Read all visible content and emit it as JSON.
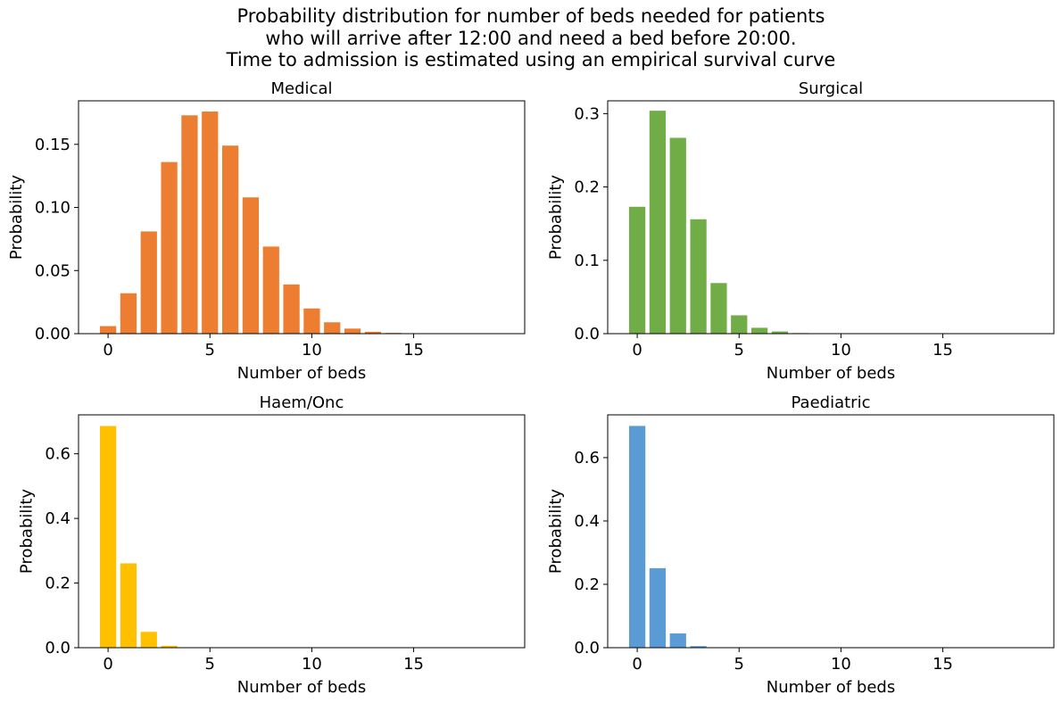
{
  "figure": {
    "title_lines": [
      "Probability distribution for number of beds needed for patients",
      "who will arrive after 12:00 and need a bed before 20:00.",
      "Time to admission is estimated using an empirical survival curve"
    ]
  },
  "chart_data": [
    {
      "type": "bar",
      "title": "Medical",
      "xlabel": "Number of beds",
      "ylabel": "Probability",
      "color": "#ED7D31",
      "x": [
        0,
        1,
        2,
        3,
        4,
        5,
        6,
        7,
        8,
        9,
        10,
        11,
        12,
        13,
        14,
        15,
        16,
        17,
        18,
        19
      ],
      "values": [
        0.006,
        0.032,
        0.081,
        0.136,
        0.173,
        0.176,
        0.149,
        0.108,
        0.069,
        0.039,
        0.02,
        0.009,
        0.004,
        0.0015,
        0.0006,
        0.0002,
        0.0001,
        0.0,
        0.0,
        0.0
      ],
      "xlim": [
        -1.45,
        20.45
      ],
      "ylim": [
        0,
        0.1845
      ],
      "xticks": [
        0,
        5,
        10,
        15
      ],
      "xtick_labels": [
        "0",
        "5",
        "10",
        "15"
      ],
      "yticks": [
        0.0,
        0.05,
        0.1,
        0.15
      ],
      "ytick_labels": [
        "0.00",
        "0.05",
        "0.10",
        "0.15"
      ]
    },
    {
      "type": "bar",
      "title": "Surgical",
      "xlabel": "Number of beds",
      "ylabel": "Probability",
      "color": "#70AD47",
      "x": [
        0,
        1,
        2,
        3,
        4,
        5,
        6,
        7,
        8,
        9,
        10,
        11,
        12,
        13,
        14,
        15,
        16,
        17,
        18,
        19
      ],
      "values": [
        0.173,
        0.304,
        0.267,
        0.156,
        0.069,
        0.025,
        0.008,
        0.003,
        0.0008,
        0.0002,
        0.0,
        0.0,
        0.0,
        0.0,
        0.0,
        0.0,
        0.0,
        0.0,
        0.0,
        0.0
      ],
      "xlim": [
        -1.45,
        20.45
      ],
      "ylim": [
        0,
        0.3175
      ],
      "xticks": [
        0,
        5,
        10,
        15
      ],
      "xtick_labels": [
        "0",
        "5",
        "10",
        "15"
      ],
      "yticks": [
        0.0,
        0.1,
        0.2,
        0.3
      ],
      "ytick_labels": [
        "0.0",
        "0.1",
        "0.2",
        "0.3"
      ]
    },
    {
      "type": "bar",
      "title": "Haem/Onc",
      "xlabel": "Number of beds",
      "ylabel": "Probability",
      "color": "#FFC000",
      "x": [
        0,
        1,
        2,
        3,
        4,
        5,
        6,
        7,
        8,
        9,
        10,
        11,
        12,
        13,
        14,
        15,
        16,
        17,
        18,
        19
      ],
      "values": [
        0.686,
        0.261,
        0.049,
        0.006,
        0.0006,
        0.0001,
        0.0,
        0.0,
        0.0,
        0.0,
        0.0,
        0.0,
        0.0,
        0.0,
        0.0,
        0.0,
        0.0,
        0.0,
        0.0,
        0.0
      ],
      "xlim": [
        -1.45,
        20.45
      ],
      "ylim": [
        0,
        0.7205
      ],
      "xticks": [
        0,
        5,
        10,
        15
      ],
      "xtick_labels": [
        "0",
        "5",
        "10",
        "15"
      ],
      "yticks": [
        0.0,
        0.2,
        0.4,
        0.6
      ],
      "ytick_labels": [
        "0.0",
        "0.2",
        "0.4",
        "0.6"
      ]
    },
    {
      "type": "bar",
      "title": "Paediatric",
      "xlabel": "Number of beds",
      "ylabel": "Probability",
      "color": "#5B9BD5",
      "x": [
        0,
        1,
        2,
        3,
        4,
        5,
        6,
        7,
        8,
        9,
        10,
        11,
        12,
        13,
        14,
        15,
        16,
        17,
        18,
        19
      ],
      "values": [
        0.7,
        0.251,
        0.045,
        0.005,
        0.0005,
        0.0,
        0.0,
        0.0,
        0.0,
        0.0,
        0.0,
        0.0,
        0.0,
        0.0,
        0.0,
        0.0,
        0.0,
        0.0,
        0.0,
        0.0
      ],
      "xlim": [
        -1.45,
        20.45
      ],
      "ylim": [
        0,
        0.735
      ],
      "xticks": [
        0,
        5,
        10,
        15
      ],
      "xtick_labels": [
        "0",
        "5",
        "10",
        "15"
      ],
      "yticks": [
        0.0,
        0.2,
        0.4,
        0.6
      ],
      "ytick_labels": [
        "0.0",
        "0.2",
        "0.4",
        "0.6"
      ]
    }
  ]
}
